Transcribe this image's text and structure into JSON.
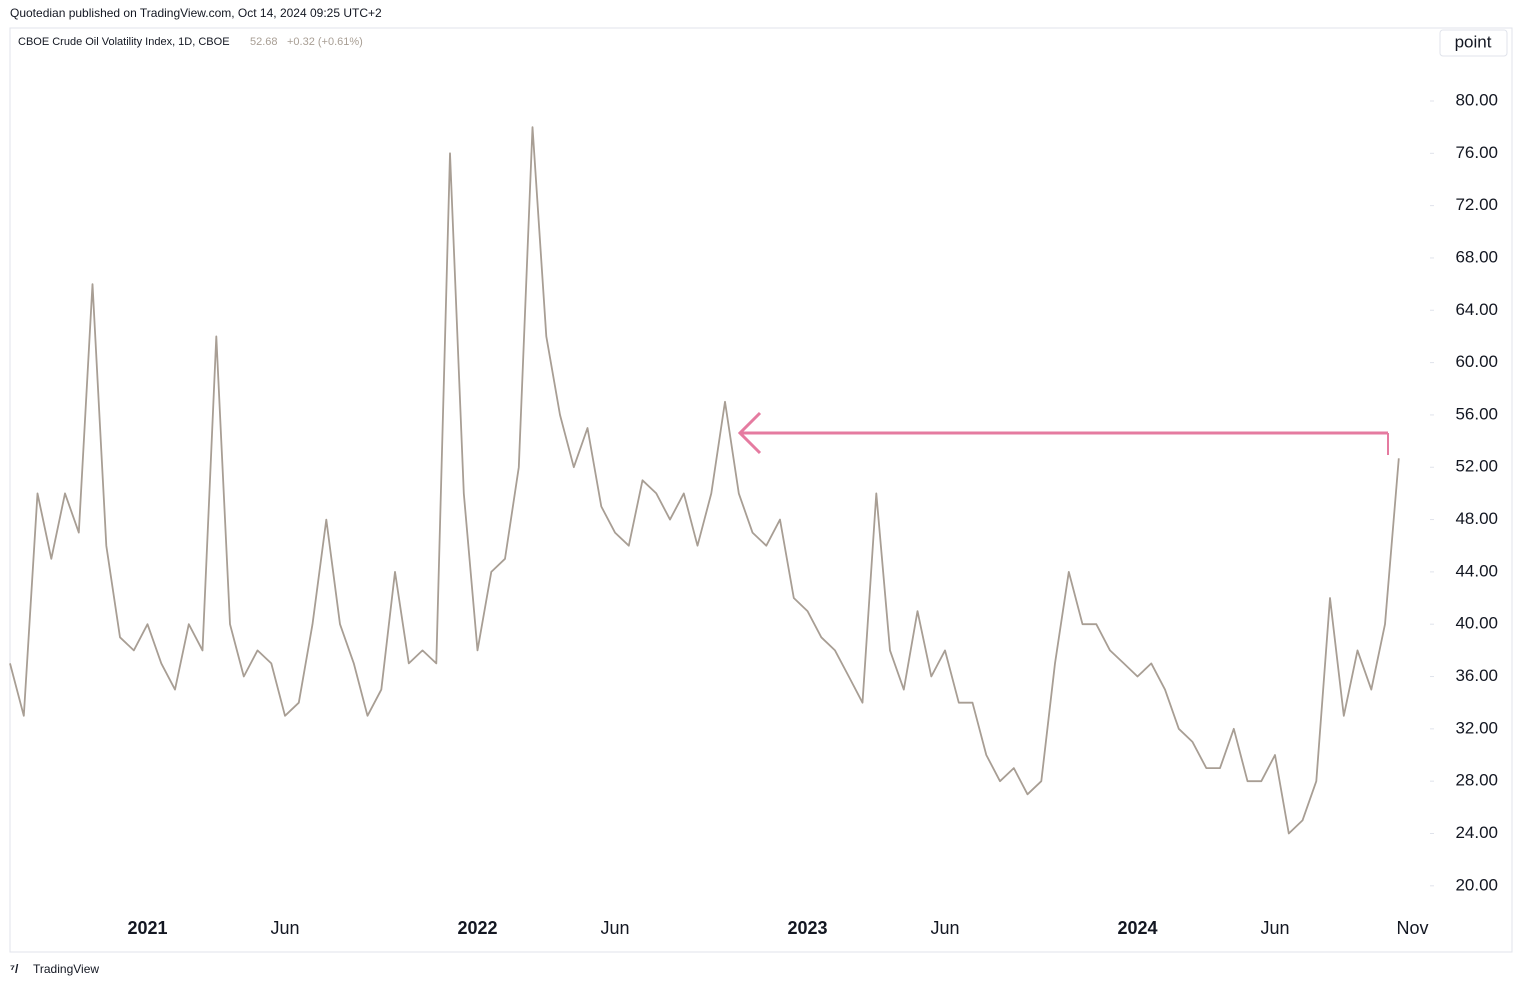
{
  "header": "Quotedian published on TradingView.com, Oct 14, 2024 09:25 UTC+2",
  "footer": "TradingView",
  "chart_data": {
    "type": "line",
    "legend": {
      "name": "CBOE Crude Oil Volatility Index, 1D, CBOE",
      "last": "52.68",
      "change": "+0.32 (+0.61%)"
    },
    "unit_label": "point",
    "categories": [
      null,
      null,
      null,
      null,
      null,
      null,
      null,
      null,
      null,
      null,
      "2021",
      null,
      null,
      null,
      null,
      null,
      null,
      null,
      null,
      null,
      "Jun",
      null,
      null,
      null,
      null,
      null,
      null,
      null,
      null,
      null,
      null,
      null,
      null,
      null,
      "2022",
      null,
      null,
      null,
      null,
      null,
      null,
      null,
      null,
      null,
      "Jun",
      null,
      null,
      null,
      null,
      null,
      null,
      null,
      null,
      null,
      null,
      null,
      null,
      null,
      "2023",
      null,
      null,
      null,
      null,
      null,
      null,
      null,
      null,
      null,
      "Jun",
      null,
      null,
      null,
      null,
      null,
      null,
      null,
      null,
      null,
      null,
      null,
      null,
      null,
      "2024",
      null,
      null,
      null,
      null,
      null,
      null,
      null,
      null,
      null,
      "Jun",
      null,
      null,
      null,
      null,
      null,
      null,
      null,
      null,
      null,
      "Nov"
    ],
    "series": [
      {
        "name": "CBOE Crude Oil Volatility Index",
        "color": "#a89e94",
        "values": [
          37,
          33,
          50,
          45,
          50,
          47,
          66,
          46,
          39,
          38,
          40,
          37,
          35,
          40,
          38,
          62,
          40,
          36,
          38,
          37,
          33,
          34,
          40,
          48,
          40,
          37,
          33,
          35,
          44,
          37,
          38,
          37,
          76,
          50,
          38,
          44,
          45,
          52,
          78,
          62,
          56,
          52,
          55,
          49,
          47,
          46,
          51,
          50,
          48,
          50,
          46,
          50,
          57,
          50,
          47,
          46,
          48,
          42,
          41,
          39,
          38,
          36,
          34,
          50,
          38,
          35,
          41,
          36,
          38,
          34,
          34,
          30,
          28,
          29,
          27,
          28,
          37,
          44,
          40,
          40,
          38,
          37,
          36,
          37,
          35,
          32,
          31,
          29,
          29,
          32,
          28,
          28,
          30,
          24,
          25,
          28,
          42,
          33,
          38,
          35,
          40,
          52.68,
          null
        ]
      }
    ],
    "ylim": [
      14.94,
      85.58
    ],
    "yticks": [
      {
        "value": 20,
        "label": "20.00"
      },
      {
        "value": 24,
        "label": "24.00"
      },
      {
        "value": 28,
        "label": "28.00"
      },
      {
        "value": 32,
        "label": "32.00"
      },
      {
        "value": 36,
        "label": "36.00"
      },
      {
        "value": 40,
        "label": "40.00"
      },
      {
        "value": 44,
        "label": "44.00"
      },
      {
        "value": 48,
        "label": "48.00"
      },
      {
        "value": 52,
        "label": "52.00"
      },
      {
        "value": 56,
        "label": "56.00"
      },
      {
        "value": 60,
        "label": "60.00"
      },
      {
        "value": 64,
        "label": "64.00"
      },
      {
        "value": 68,
        "label": "68.00"
      },
      {
        "value": 72,
        "label": "72.00"
      },
      {
        "value": 76,
        "label": "76.00"
      },
      {
        "value": 80,
        "label": "80.00"
      }
    ],
    "grid": false
  }
}
